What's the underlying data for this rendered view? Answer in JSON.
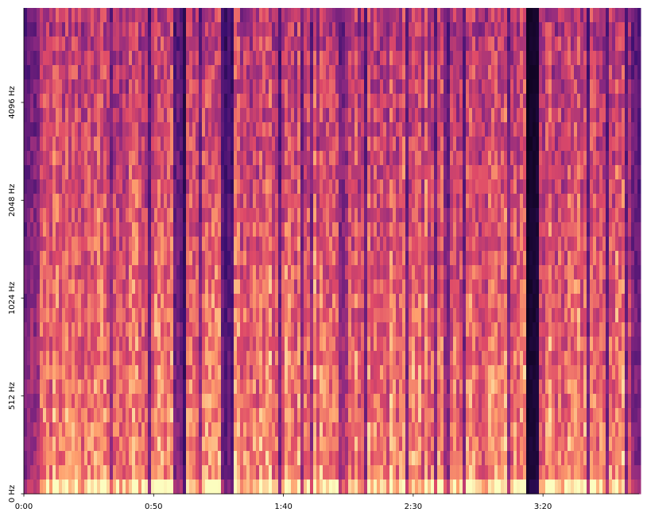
{
  "chart_data": {
    "type": "spectrogram",
    "xlim": [
      0,
      237
    ],
    "xticks": [
      {
        "value": 0,
        "label": "0:00"
      },
      {
        "value": 50,
        "label": "0:50"
      },
      {
        "value": 100,
        "label": "1:40"
      },
      {
        "value": 150,
        "label": "2:30"
      },
      {
        "value": 200,
        "label": "3:20"
      }
    ],
    "ylim": [
      0,
      8000
    ],
    "yscale": "log",
    "yticks": [
      {
        "value": 0,
        "label": "0 Hz"
      },
      {
        "value": 512,
        "label": "512 Hz"
      },
      {
        "value": 1024,
        "label": "1024 Hz"
      },
      {
        "value": 2048,
        "label": "2048 Hz"
      },
      {
        "value": 4096,
        "label": "4096 Hz"
      }
    ],
    "colormap": "magma"
  }
}
